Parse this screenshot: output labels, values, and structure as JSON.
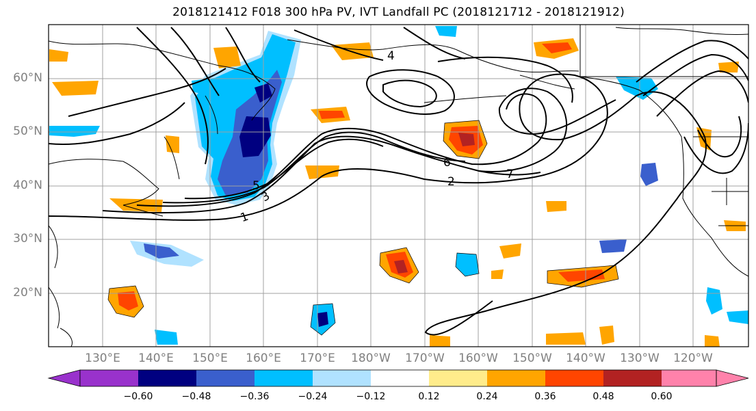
{
  "title": "2018121412 F018 300 hPa PV, IVT Landfall PC (2018121712 - 2018121912)",
  "latitude_labels": [
    "60°N",
    "50°N",
    "40°N",
    "30°N",
    "20°N"
  ],
  "longitude_labels": [
    "130°E",
    "140°E",
    "150°E",
    "160°E",
    "170°E",
    "180°W",
    "170°W",
    "160°W",
    "150°W",
    "140°W",
    "130°W",
    "120°W"
  ],
  "pv_contour_labels": [
    "1",
    "2",
    "3",
    "4",
    "5",
    "6",
    "7"
  ],
  "colorbar": {
    "ticks": [
      "−0.60",
      "−0.48",
      "−0.36",
      "−0.24",
      "−0.12",
      "0.12",
      "0.24",
      "0.36",
      "0.48",
      "0.60"
    ],
    "colors": [
      "#9932cc",
      "#000080",
      "#3a5fcd",
      "#00bfff",
      "#b0e2ff",
      "#ffffff",
      "#ffec8b",
      "#ffa500",
      "#ff4500",
      "#b22222",
      "#ff82ab"
    ]
  },
  "colors": {
    "grid": "#a0a0a0",
    "contour": "#000000",
    "navy": "#000080",
    "royal": "#3a5fcd",
    "sky": "#00bfff",
    "pale_blue": "#b0e2ff",
    "yellow": "#ffec8b",
    "orange": "#ffa500",
    "red_orange": "#ff4500",
    "firebrick": "#b22222"
  }
}
